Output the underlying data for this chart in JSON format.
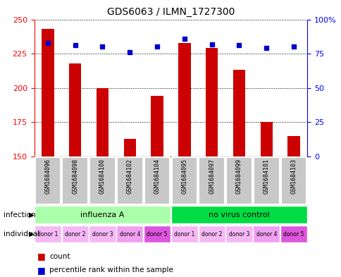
{
  "title": "GDS6063 / ILMN_1727300",
  "samples": [
    "GSM1684096",
    "GSM1684098",
    "GSM1684100",
    "GSM1684102",
    "GSM1684104",
    "GSM1684095",
    "GSM1684097",
    "GSM1684099",
    "GSM1684101",
    "GSM1684103"
  ],
  "counts": [
    243,
    218,
    200,
    163,
    194,
    233,
    229,
    213,
    175,
    165
  ],
  "percentiles": [
    83,
    81,
    80,
    76,
    80,
    86,
    82,
    81,
    79,
    80
  ],
  "ylim_left": [
    150,
    250
  ],
  "ylim_right": [
    0,
    100
  ],
  "yticks_left": [
    150,
    175,
    200,
    225,
    250
  ],
  "yticks_right": [
    0,
    25,
    50,
    75,
    100
  ],
  "bar_color": "#cc0000",
  "dot_color": "#0000cc",
  "groups": [
    {
      "label": "influenza A",
      "start": 0,
      "end": 5,
      "color": "#aaffaa"
    },
    {
      "label": "no virus control",
      "start": 5,
      "end": 10,
      "color": "#00dd44"
    }
  ],
  "individuals": [
    "donor 1",
    "donor 2",
    "donor 3",
    "donor 4",
    "donor 5",
    "donor 1",
    "donor 2",
    "donor 3",
    "donor 4",
    "donor 5"
  ],
  "ind_colors": [
    "#f5b8f5",
    "#f5b8f5",
    "#f5b8f5",
    "#f0a0f0",
    "#dd55dd",
    "#f5b8f5",
    "#f5b8f5",
    "#f5b8f5",
    "#f0a0f0",
    "#dd55dd"
  ],
  "label_infection": "infection",
  "label_individual": "individual",
  "legend_count_label": "count",
  "legend_percentile_label": "percentile rank within the sample",
  "sample_box_color": "#c8c8c8",
  "bar_width": 0.45
}
